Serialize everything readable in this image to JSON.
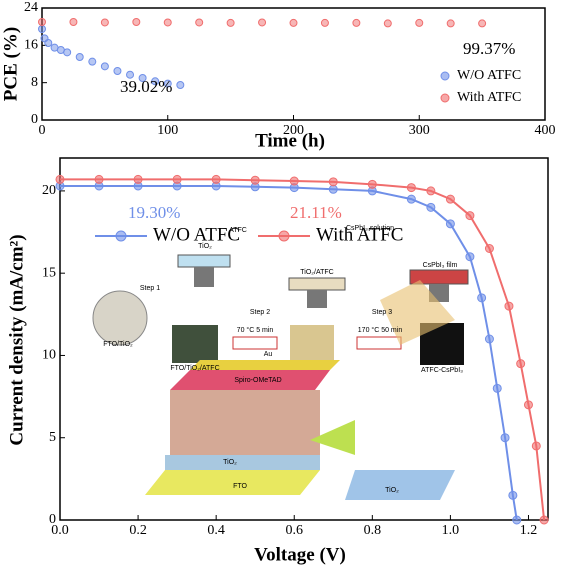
{
  "chart_data": [
    {
      "type": "scatter",
      "xlabel": "Time (h)",
      "ylabel": "PCE (%)",
      "xlim": [
        0,
        400
      ],
      "xticks": [
        0,
        100,
        200,
        300,
        400
      ],
      "ylim": [
        0,
        24
      ],
      "yticks": [
        0,
        8,
        16,
        24
      ],
      "legend": "lower right",
      "series": [
        {
          "name": "W/O ATFC",
          "color": "#6f8fe8",
          "x": [
            0,
            2,
            5,
            10,
            15,
            20,
            30,
            40,
            50,
            60,
            70,
            80,
            90,
            100,
            110
          ],
          "values": [
            19.5,
            17.5,
            16.5,
            15.5,
            15,
            14.5,
            13.5,
            12.5,
            11.5,
            10.5,
            9.7,
            9,
            8.3,
            7.8,
            7.5
          ]
        },
        {
          "name": "With ATFC",
          "color": "#f06d6d",
          "x": [
            0,
            25,
            50,
            75,
            100,
            125,
            150,
            175,
            200,
            225,
            250,
            275,
            300,
            325,
            350
          ],
          "values": [
            21,
            21,
            20.9,
            21,
            20.9,
            20.9,
            20.8,
            20.9,
            20.8,
            20.8,
            20.8,
            20.7,
            20.8,
            20.7,
            20.7
          ]
        }
      ],
      "annotations": [
        {
          "text": "39.02%",
          "color": "#000000"
        },
        {
          "text": "99.37%",
          "color": "#000000"
        }
      ]
    },
    {
      "type": "line",
      "xlabel": "Voltage (V)",
      "ylabel": "Current density (mA/cm²)",
      "xlim": [
        0,
        1.25
      ],
      "xticks": [
        {
          "value": 0,
          "label": "0.0"
        },
        0.2,
        0.4,
        0.6,
        0.8,
        {
          "value": 1,
          "label": "1.0"
        },
        1.2
      ],
      "ylim": [
        0,
        22
      ],
      "yticks": [
        0,
        5,
        10,
        15,
        20
      ],
      "legend": "upper center",
      "series": [
        {
          "name": "W/O ATFC",
          "color": "#6f8fe8",
          "x": [
            0,
            0.1,
            0.2,
            0.3,
            0.4,
            0.5,
            0.6,
            0.7,
            0.8,
            0.9,
            0.95,
            1.0,
            1.05,
            1.08,
            1.1,
            1.12,
            1.14,
            1.16,
            1.17
          ],
          "values": [
            20.3,
            20.3,
            20.3,
            20.3,
            20.3,
            20.25,
            20.2,
            20.1,
            20,
            19.5,
            19,
            18,
            16,
            13.5,
            11,
            8,
            5,
            1.5,
            0
          ]
        },
        {
          "name": "With ATFC",
          "color": "#f06d6d",
          "x": [
            0,
            0.1,
            0.2,
            0.3,
            0.4,
            0.5,
            0.6,
            0.7,
            0.8,
            0.9,
            0.95,
            1.0,
            1.05,
            1.1,
            1.15,
            1.18,
            1.2,
            1.22,
            1.24
          ],
          "values": [
            20.7,
            20.7,
            20.7,
            20.7,
            20.7,
            20.65,
            20.6,
            20.55,
            20.4,
            20.2,
            20,
            19.5,
            18.5,
            16.5,
            13,
            9.5,
            7,
            4.5,
            0
          ]
        }
      ],
      "annotations": [
        {
          "text": "19.30%",
          "color": "#6f8fe8"
        },
        {
          "text": "21.11%",
          "color": "#f06d6d"
        }
      ],
      "inset_labels": [
        "ATFC",
        "CsPbI₃ solution",
        "TiO₂",
        "TiO₂/ATFC",
        "CsPbI₃ film",
        "Step 1",
        "Step 2",
        "Step 3",
        "70 °C 5 min",
        "170 °C 50 min",
        "FTO/TiO₂",
        "FTO/TiO₂/ATFC",
        "ATFC-CsPbI₃",
        "Au",
        "Spiro-OMeTAD",
        "TiO₂",
        "FTO",
        "TiO₂"
      ]
    }
  ]
}
